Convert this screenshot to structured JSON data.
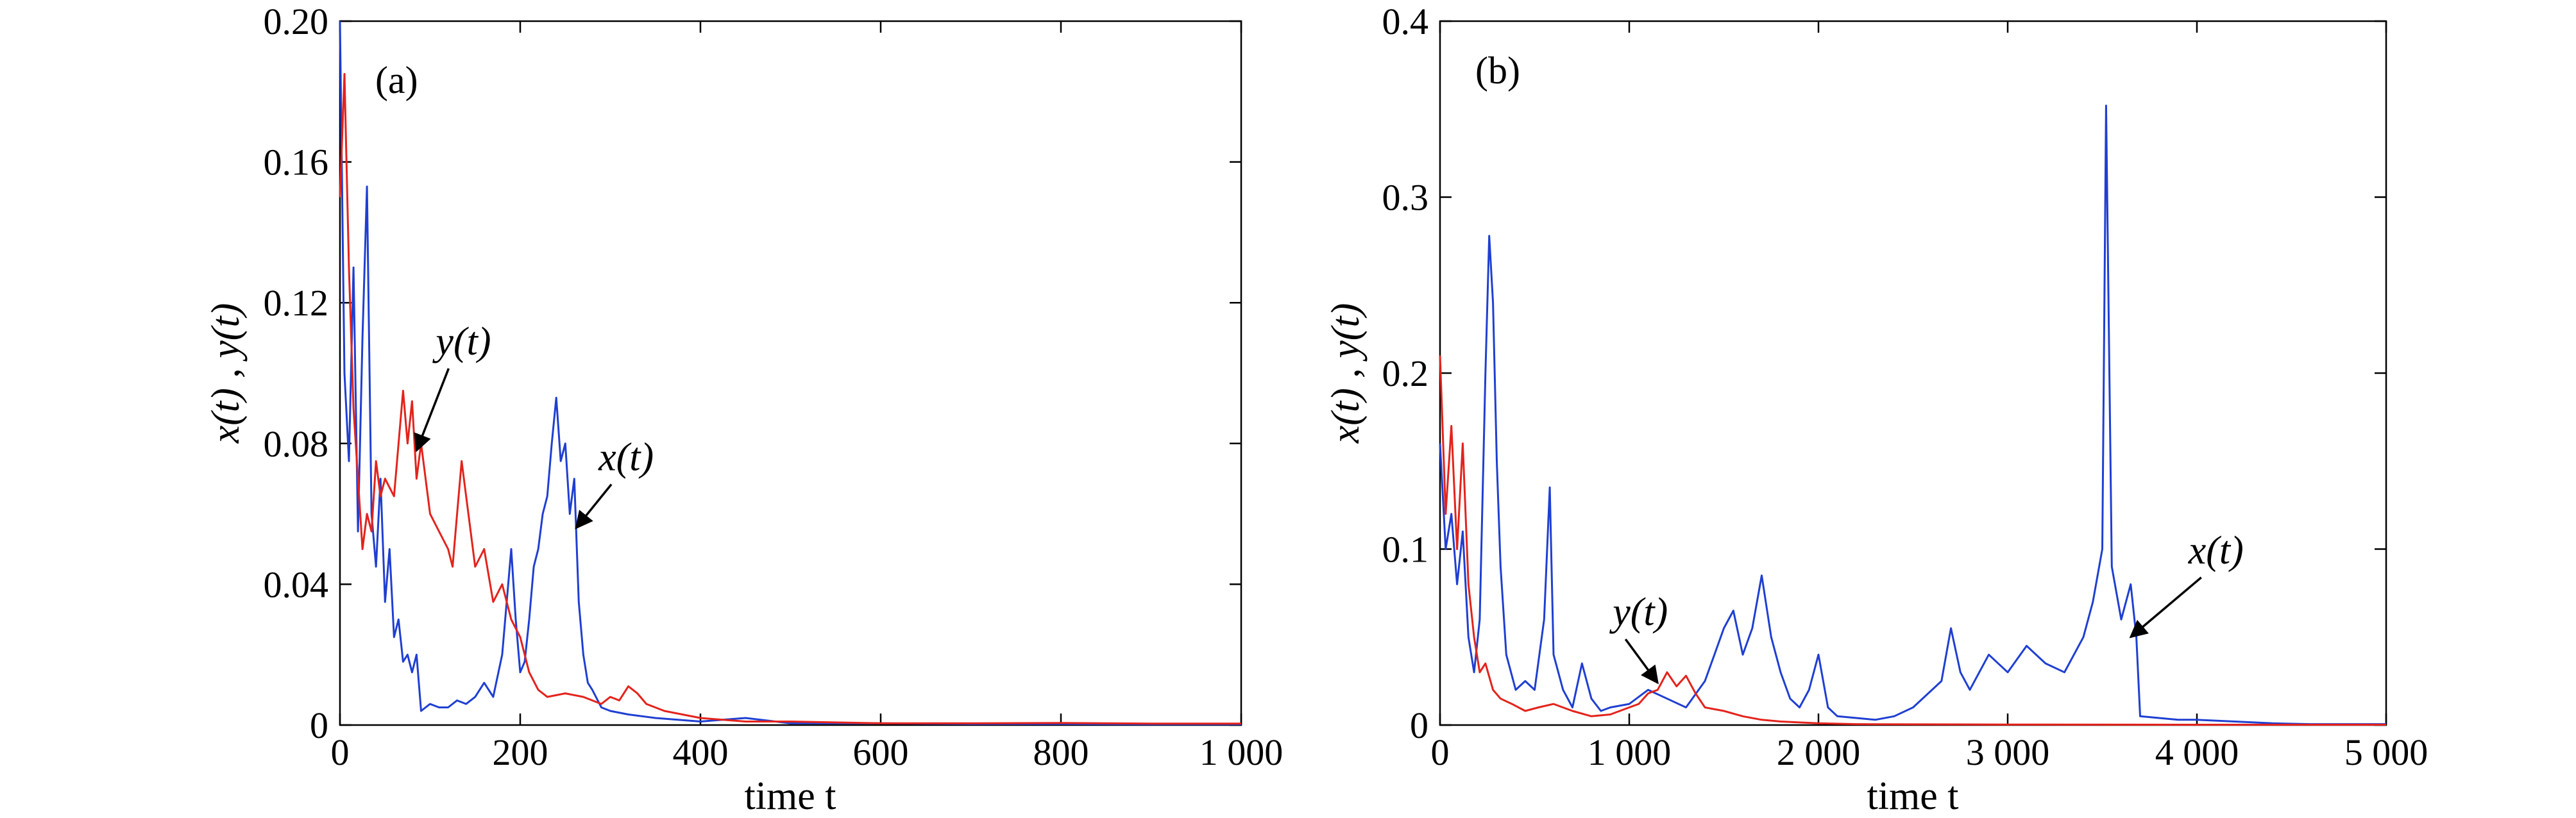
{
  "figure": {
    "panels": [
      {
        "id": "a",
        "tag": "(a)",
        "xlabel": "time t",
        "ylabel": "x(t) , y(t)",
        "x_ticks": [
          "0",
          "200",
          "400",
          "600",
          "800",
          "1 000"
        ],
        "y_ticks": [
          "0",
          "0.04",
          "0.08",
          "0.12",
          "0.16",
          "0.20"
        ],
        "annotations": [
          {
            "text": "y(t)",
            "series": "y(t)",
            "point_to": [
              85,
              0.078
            ]
          },
          {
            "text": "x(t)",
            "series": "x(t)",
            "point_to": [
              262,
              0.056
            ]
          }
        ]
      },
      {
        "id": "b",
        "tag": "(b)",
        "xlabel": "time t",
        "ylabel": "x(t) , y(t)",
        "x_ticks": [
          "0",
          "1 000",
          "2 000",
          "3 000",
          "4 000",
          "5 000"
        ],
        "y_ticks": [
          "0",
          "0.1",
          "0.2",
          "0.3",
          "0.4"
        ],
        "annotations": [
          {
            "text": "y(t)",
            "series": "y(t)",
            "point_to": [
              1150,
              0.024
            ]
          },
          {
            "text": "x(t)",
            "series": "x(t)",
            "point_to": [
              3650,
              0.05
            ]
          }
        ]
      }
    ]
  },
  "colors": {
    "x_series": "#1f3fd1",
    "y_series": "#e3231c",
    "axis": "#000000"
  },
  "chart_data": [
    {
      "type": "line",
      "xlabel": "time t",
      "ylabel": "x(t) , y(t)",
      "xlim": [
        0,
        1000
      ],
      "ylim": [
        0,
        0.2
      ],
      "grid": false,
      "legend": "none",
      "series": [
        {
          "name": "x(t)",
          "x": [
            0,
            5,
            10,
            15,
            20,
            25,
            30,
            35,
            40,
            45,
            50,
            55,
            60,
            65,
            70,
            75,
            80,
            85,
            90,
            95,
            100,
            110,
            120,
            130,
            140,
            150,
            160,
            170,
            180,
            190,
            195,
            200,
            205,
            210,
            215,
            220,
            225,
            230,
            235,
            240,
            245,
            250,
            255,
            260,
            265,
            270,
            275,
            280,
            290,
            300,
            320,
            350,
            400,
            450,
            500,
            600,
            700,
            800,
            900,
            1000
          ],
          "y": [
            0.2,
            0.1,
            0.075,
            0.13,
            0.055,
            0.11,
            0.153,
            0.06,
            0.045,
            0.07,
            0.035,
            0.05,
            0.025,
            0.03,
            0.018,
            0.02,
            0.015,
            0.02,
            0.004,
            0.005,
            0.006,
            0.005,
            0.005,
            0.007,
            0.006,
            0.008,
            0.012,
            0.008,
            0.02,
            0.05,
            0.03,
            0.015,
            0.018,
            0.03,
            0.045,
            0.05,
            0.06,
            0.065,
            0.08,
            0.093,
            0.075,
            0.08,
            0.06,
            0.07,
            0.035,
            0.02,
            0.012,
            0.01,
            0.005,
            0.004,
            0.003,
            0.002,
            0.001,
            0.002,
            0.0005,
            0.0005,
            0.0003,
            0.0003,
            0.0002,
            0.0002
          ]
        },
        {
          "name": "y(t)",
          "x": [
            0,
            5,
            10,
            15,
            20,
            25,
            30,
            35,
            40,
            45,
            50,
            60,
            70,
            75,
            80,
            85,
            90,
            100,
            110,
            120,
            125,
            130,
            135,
            140,
            150,
            160,
            170,
            180,
            190,
            200,
            210,
            220,
            230,
            250,
            270,
            290,
            300,
            310,
            320,
            330,
            340,
            360,
            380,
            400,
            450,
            500,
            600,
            700,
            800,
            900,
            1000
          ],
          "y": [
            0.15,
            0.185,
            0.13,
            0.09,
            0.07,
            0.05,
            0.06,
            0.055,
            0.075,
            0.065,
            0.07,
            0.065,
            0.095,
            0.08,
            0.092,
            0.07,
            0.08,
            0.06,
            0.055,
            0.05,
            0.045,
            0.06,
            0.075,
            0.065,
            0.045,
            0.05,
            0.035,
            0.04,
            0.03,
            0.025,
            0.015,
            0.01,
            0.008,
            0.009,
            0.008,
            0.006,
            0.008,
            0.007,
            0.011,
            0.009,
            0.006,
            0.004,
            0.003,
            0.002,
            0.001,
            0.001,
            0.0005,
            0.0005,
            0.0006,
            0.0004,
            0.0004
          ]
        }
      ]
    },
    {
      "type": "line",
      "xlabel": "time t",
      "ylabel": "x(t) , y(t)",
      "xlim": [
        0,
        5000
      ],
      "ylim": [
        0,
        0.4
      ],
      "grid": false,
      "legend": "none",
      "series": [
        {
          "name": "x(t)",
          "x": [
            0,
            30,
            60,
            90,
            120,
            150,
            180,
            210,
            240,
            260,
            280,
            300,
            320,
            350,
            400,
            450,
            500,
            550,
            580,
            600,
            650,
            700,
            750,
            800,
            850,
            900,
            1000,
            1100,
            1200,
            1300,
            1400,
            1450,
            1500,
            1550,
            1600,
            1650,
            1700,
            1750,
            1800,
            1850,
            1900,
            1950,
            2000,
            2050,
            2100,
            2200,
            2300,
            2400,
            2500,
            2600,
            2650,
            2700,
            2750,
            2800,
            2900,
            3000,
            3100,
            3200,
            3300,
            3400,
            3450,
            3500,
            3520,
            3550,
            3600,
            3650,
            3680,
            3700,
            3800,
            3900,
            4000,
            4200,
            4400,
            4600,
            5000
          ],
          "y": [
            0.16,
            0.1,
            0.12,
            0.08,
            0.11,
            0.05,
            0.03,
            0.06,
            0.2,
            0.278,
            0.24,
            0.15,
            0.09,
            0.04,
            0.02,
            0.025,
            0.02,
            0.06,
            0.135,
            0.04,
            0.02,
            0.01,
            0.035,
            0.015,
            0.008,
            0.01,
            0.012,
            0.02,
            0.015,
            0.01,
            0.025,
            0.04,
            0.055,
            0.065,
            0.04,
            0.055,
            0.085,
            0.05,
            0.03,
            0.015,
            0.01,
            0.02,
            0.04,
            0.01,
            0.005,
            0.004,
            0.003,
            0.005,
            0.01,
            0.02,
            0.025,
            0.055,
            0.03,
            0.02,
            0.04,
            0.03,
            0.045,
            0.035,
            0.03,
            0.05,
            0.07,
            0.1,
            0.352,
            0.09,
            0.06,
            0.08,
            0.05,
            0.005,
            0.004,
            0.003,
            0.003,
            0.002,
            0.001,
            0.0005,
            0.0005
          ]
        },
        {
          "name": "y(t)",
          "x": [
            0,
            30,
            60,
            90,
            120,
            150,
            180,
            210,
            240,
            280,
            320,
            380,
            450,
            520,
            600,
            700,
            800,
            900,
            1000,
            1050,
            1100,
            1150,
            1200,
            1250,
            1300,
            1350,
            1400,
            1500,
            1600,
            1700,
            1800,
            2000,
            2200,
            2500,
            3000,
            4000,
            5000
          ],
          "y": [
            0.21,
            0.12,
            0.17,
            0.1,
            0.16,
            0.08,
            0.05,
            0.03,
            0.035,
            0.02,
            0.015,
            0.012,
            0.008,
            0.01,
            0.012,
            0.008,
            0.005,
            0.006,
            0.01,
            0.012,
            0.018,
            0.02,
            0.03,
            0.022,
            0.028,
            0.018,
            0.01,
            0.008,
            0.005,
            0.003,
            0.002,
            0.001,
            0.0005,
            0.0004,
            0.0003,
            0.0002,
            0.0002
          ]
        }
      ]
    }
  ]
}
